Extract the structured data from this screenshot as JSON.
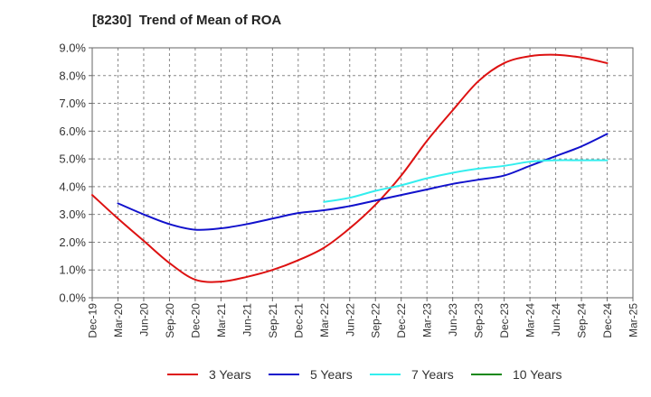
{
  "chart_data": {
    "type": "line",
    "title": "[8230]  Trend of Mean of ROA",
    "xlabel": "",
    "ylabel": "",
    "ylim": [
      0,
      9
    ],
    "yticks": [
      "0.0%",
      "1.0%",
      "2.0%",
      "3.0%",
      "4.0%",
      "5.0%",
      "6.0%",
      "7.0%",
      "8.0%",
      "9.0%"
    ],
    "grid": true,
    "legend_position": "bottom",
    "categories": [
      "Dec-19",
      "Mar-20",
      "Jun-20",
      "Sep-20",
      "Dec-20",
      "Mar-21",
      "Jun-21",
      "Sep-21",
      "Dec-21",
      "Mar-22",
      "Jun-22",
      "Sep-22",
      "Dec-22",
      "Mar-23",
      "Jun-23",
      "Sep-23",
      "Dec-23",
      "Mar-24",
      "Jun-24",
      "Sep-24",
      "Dec-24",
      "Mar-25"
    ],
    "series": [
      {
        "name": "3 Years",
        "color": "#dd1111",
        "values": [
          3.7,
          2.85,
          2.05,
          1.25,
          0.65,
          0.58,
          0.75,
          1.0,
          1.35,
          1.8,
          2.5,
          3.35,
          4.4,
          5.65,
          6.75,
          7.8,
          8.45,
          8.7,
          8.75,
          8.65,
          8.45,
          null
        ]
      },
      {
        "name": "5 Years",
        "color": "#1111cc",
        "values": [
          null,
          3.4,
          3.0,
          2.65,
          2.45,
          2.5,
          2.65,
          2.85,
          3.05,
          3.15,
          3.3,
          3.5,
          3.7,
          3.9,
          4.1,
          4.25,
          4.4,
          4.75,
          5.1,
          5.45,
          5.9,
          null
        ]
      },
      {
        "name": "7 Years",
        "color": "#33eeee",
        "values": [
          null,
          null,
          null,
          null,
          null,
          null,
          null,
          null,
          null,
          3.45,
          3.6,
          3.85,
          4.05,
          4.3,
          4.5,
          4.65,
          4.75,
          4.9,
          4.95,
          4.95,
          4.95,
          null
        ]
      },
      {
        "name": "10 Years",
        "color": "#118811",
        "values": [
          null,
          null,
          null,
          null,
          null,
          null,
          null,
          null,
          null,
          null,
          null,
          null,
          null,
          null,
          null,
          null,
          null,
          null,
          null,
          null,
          null,
          null
        ]
      }
    ]
  }
}
